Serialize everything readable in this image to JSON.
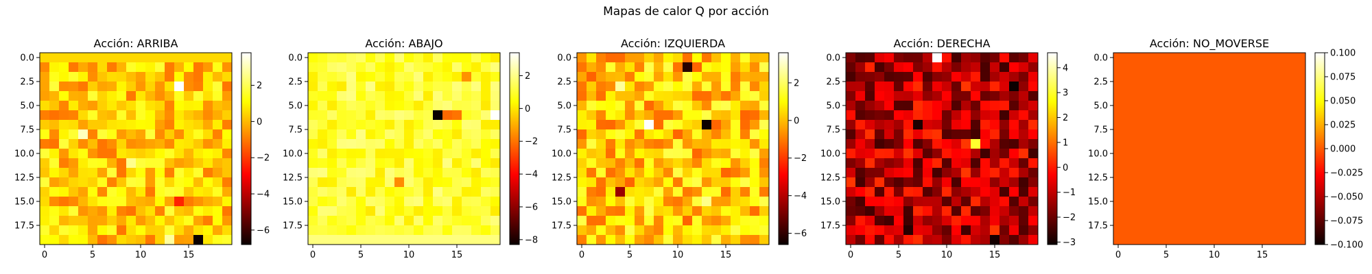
{
  "figure": {
    "title": "Mapas de calor Q por acción"
  },
  "chart_data": [
    {
      "type": "heatmap",
      "title": "Acción: ARRIBA",
      "grid_size": [
        20,
        20
      ],
      "colormap": "hot",
      "vmin": -6.8,
      "vmax": 3.8,
      "base": 0.3,
      "spread": 0.9,
      "row_overrides": [
        {
          "row": 0,
          "value": 0.5
        }
      ],
      "hotspots": [
        {
          "row": 3,
          "col": 14,
          "value": 3.8
        },
        {
          "row": 8,
          "col": 4,
          "value": 3.1
        },
        {
          "row": 11,
          "col": 9,
          "value": 2.6
        },
        {
          "row": 19,
          "col": 16,
          "value": -6.8
        },
        {
          "row": 19,
          "col": 13,
          "value": 2.8
        },
        {
          "row": 15,
          "col": 14,
          "value": -2.4
        }
      ],
      "x_ticks": [
        "0",
        "5",
        "10",
        "15"
      ],
      "x_tick_values": [
        0,
        5,
        10,
        15
      ],
      "y_ticks": [
        "0.0",
        "2.5",
        "5.0",
        "7.5",
        "10.0",
        "12.5",
        "15.0",
        "17.5"
      ],
      "y_tick_values": [
        0,
        2.5,
        5,
        7.5,
        10,
        12.5,
        15,
        17.5
      ],
      "colorbar_ticks": [
        "−6",
        "−4",
        "−2",
        "0",
        "2"
      ],
      "colorbar_tick_values": [
        -6,
        -4,
        -2,
        0,
        2
      ],
      "seed": 11
    },
    {
      "type": "heatmap",
      "title": "Acción: ABAJO",
      "grid_size": [
        20,
        20
      ],
      "colormap": "hot",
      "vmin": -8.3,
      "vmax": 3.4,
      "base": 1.0,
      "spread": 0.6,
      "row_overrides": [
        {
          "row": 19,
          "value": 1.9
        }
      ],
      "hotspots": [
        {
          "row": 6,
          "col": 13,
          "value": -8.3
        },
        {
          "row": 6,
          "col": 19,
          "value": 3.4
        },
        {
          "row": 6,
          "col": 14,
          "value": -2.2
        },
        {
          "row": 6,
          "col": 15,
          "value": -2.0
        },
        {
          "row": 2,
          "col": 16,
          "value": -1.5
        },
        {
          "row": 13,
          "col": 9,
          "value": -1.6
        }
      ],
      "x_ticks": [
        "0",
        "5",
        "10",
        "15"
      ],
      "x_tick_values": [
        0,
        5,
        10,
        15
      ],
      "y_ticks": [
        "0.0",
        "2.5",
        "5.0",
        "7.5",
        "10.0",
        "12.5",
        "15.0",
        "17.5"
      ],
      "y_tick_values": [
        0,
        2.5,
        5,
        7.5,
        10,
        12.5,
        15,
        17.5
      ],
      "colorbar_ticks": [
        "−8",
        "−6",
        "−4",
        "−2",
        "0",
        "2"
      ],
      "colorbar_tick_values": [
        -8,
        -6,
        -4,
        -2,
        0,
        2
      ],
      "seed": 23
    },
    {
      "type": "heatmap",
      "title": "Acción: IZQUIERDA",
      "grid_size": [
        20,
        20
      ],
      "colormap": "hot",
      "vmin": -6.6,
      "vmax": 3.6,
      "base": 0.2,
      "spread": 1.0,
      "row_overrides": [],
      "hotspots": [
        {
          "row": 1,
          "col": 11,
          "value": -6.2
        },
        {
          "row": 7,
          "col": 7,
          "value": 3.6
        },
        {
          "row": 7,
          "col": 13,
          "value": -6.6
        },
        {
          "row": 3,
          "col": 4,
          "value": 2.6
        },
        {
          "row": 14,
          "col": 4,
          "value": -4.5
        },
        {
          "row": 15,
          "col": 13,
          "value": 2.4
        }
      ],
      "x_ticks": [
        "0",
        "5",
        "10",
        "15"
      ],
      "x_tick_values": [
        0,
        5,
        10,
        15
      ],
      "y_ticks": [
        "0.0",
        "2.5",
        "5.0",
        "7.5",
        "10.0",
        "12.5",
        "15.0",
        "17.5"
      ],
      "y_tick_values": [
        0,
        2.5,
        5,
        7.5,
        10,
        12.5,
        15,
        17.5
      ],
      "colorbar_ticks": [
        "−6",
        "−4",
        "−2",
        "0",
        "2"
      ],
      "colorbar_tick_values": [
        -6,
        -4,
        -2,
        0,
        2
      ],
      "seed": 37
    },
    {
      "type": "heatmap",
      "title": "Acción: DERECHA",
      "grid_size": [
        20,
        20
      ],
      "colormap": "hot",
      "vmin": -3.1,
      "vmax": 4.6,
      "base": -1.1,
      "spread": 0.9,
      "row_overrides": [],
      "hotspots": [
        {
          "row": 0,
          "col": 9,
          "value": 4.6
        },
        {
          "row": 9,
          "col": 13,
          "value": 3.0
        },
        {
          "row": 3,
          "col": 17,
          "value": -3.1
        },
        {
          "row": 7,
          "col": 7,
          "value": -2.9
        },
        {
          "row": 18,
          "col": 6,
          "value": -2.8
        },
        {
          "row": 19,
          "col": 15,
          "value": -3.0
        }
      ],
      "x_ticks": [
        "0",
        "5",
        "10",
        "15"
      ],
      "x_tick_values": [
        0,
        5,
        10,
        15
      ],
      "y_ticks": [
        "0.0",
        "2.5",
        "5.0",
        "7.5",
        "10.0",
        "12.5",
        "15.0",
        "17.5"
      ],
      "y_tick_values": [
        0,
        2.5,
        5,
        7.5,
        10,
        12.5,
        15,
        17.5
      ],
      "colorbar_ticks": [
        "−3",
        "−2",
        "−1",
        "0",
        "1",
        "2",
        "3",
        "4"
      ],
      "colorbar_tick_values": [
        -3,
        -2,
        -1,
        0,
        1,
        2,
        3,
        4
      ],
      "seed": 53
    },
    {
      "type": "heatmap",
      "title": "Acción: NO_MOVERSE",
      "grid_size": [
        20,
        20
      ],
      "colormap": "hot",
      "vmin": -0.1,
      "vmax": 0.1,
      "base": 0.0,
      "spread": 0.0,
      "row_overrides": [],
      "hotspots": [],
      "x_ticks": [
        "0",
        "5",
        "10",
        "15"
      ],
      "x_tick_values": [
        0,
        5,
        10,
        15
      ],
      "y_ticks": [
        "0.0",
        "2.5",
        "5.0",
        "7.5",
        "10.0",
        "12.5",
        "15.0",
        "17.5"
      ],
      "y_tick_values": [
        0,
        2.5,
        5,
        7.5,
        10,
        12.5,
        15,
        17.5
      ],
      "colorbar_ticks": [
        "−0.100",
        "−0.075",
        "−0.050",
        "−0.025",
        "0.000",
        "0.025",
        "0.050",
        "0.075",
        "0.100"
      ],
      "colorbar_tick_values": [
        -0.1,
        -0.075,
        -0.05,
        -0.025,
        0,
        0.025,
        0.05,
        0.075,
        0.1
      ],
      "seed": 71
    }
  ]
}
